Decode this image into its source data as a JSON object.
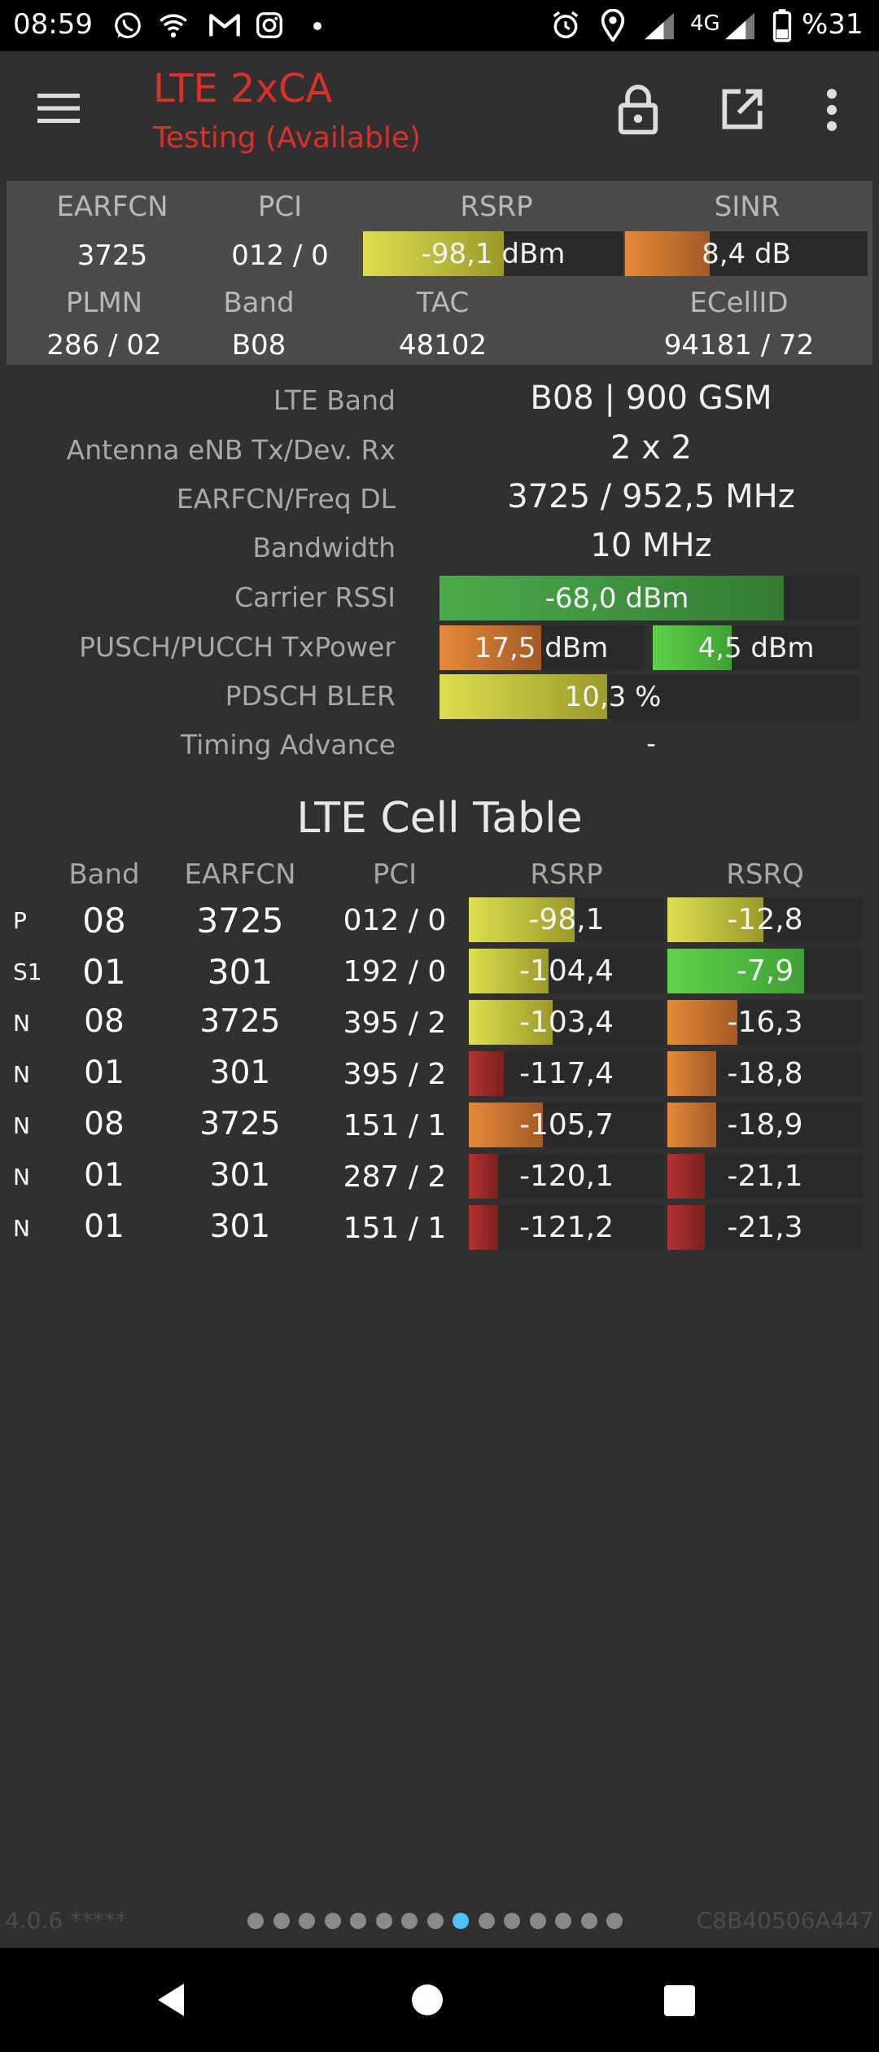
{
  "status_bar": {
    "time": "08:59",
    "left_icons": [
      "whatsapp-icon",
      "wifi-icon",
      "gmail-icon",
      "instagram-icon",
      "dot-icon"
    ],
    "right_icons": [
      "alarm-icon",
      "location-icon",
      "signal-icon",
      "network-4g-icon",
      "signal-icon",
      "battery-icon"
    ],
    "network_type": "4G",
    "battery": "%31"
  },
  "app_bar": {
    "title": "LTE 2xCA",
    "subtitle": "Testing (Available)",
    "title_color": "#d9302a",
    "actions": [
      "lock-icon",
      "open-external-icon",
      "more-vert-icon"
    ]
  },
  "summary": {
    "labels": {
      "earfcn": "EARFCN",
      "pci": "PCI",
      "rsrp": "RSRP",
      "sinr": "SINR",
      "plmn": "PLMN",
      "band": "Band",
      "tac": "TAC",
      "ecellid": "ECellID"
    },
    "earfcn": "3725",
    "pci": "012 / 0",
    "rsrp": {
      "text": "-98,1 dBm",
      "level": 0.54,
      "color": "yellow"
    },
    "sinr": {
      "text": "8,4 dB",
      "level": 0.35,
      "color": "orange"
    },
    "plmn": "286 / 02",
    "band": "B08",
    "tac": "48102",
    "ecellid": "94181 / 72"
  },
  "details": {
    "lte_band_label": "LTE Band",
    "lte_band": "B08 | 900 GSM",
    "antenna_label": "Antenna eNB Tx/Dev. Rx",
    "antenna": "2 x 2",
    "earfcn_freq_label": "EARFCN/Freq DL",
    "earfcn_freq": "3725 / 952,5 MHz",
    "bandwidth_label": "Bandwidth",
    "bandwidth": "10 MHz",
    "carrier_rssi_label": "Carrier RSSI",
    "carrier_rssi": {
      "text": "-68,0 dBm",
      "level": 0.82,
      "color": "green2"
    },
    "txpower_label": "PUSCH/PUCCH TxPower",
    "pusch": {
      "text": "17,5 dBm",
      "level": 0.5,
      "color": "orange"
    },
    "pucch": {
      "text": "4,5 dBm",
      "level": 0.38,
      "color": "green"
    },
    "bler_label": "PDSCH BLER",
    "bler": {
      "text": "10,3 %",
      "level": 0.4,
      "color": "yellow"
    },
    "timing_advance_label": "Timing Advance",
    "timing_advance": "-"
  },
  "cell_table": {
    "title": "LTE Cell Table",
    "headers": {
      "band": "Band",
      "earfcn": "EARFCN",
      "pci": "PCI",
      "rsrp": "RSRP",
      "rsrq": "RSRQ"
    },
    "rows": [
      {
        "type": "P",
        "band": "08",
        "earfcn": "3725",
        "pci": "012 / 0",
        "rsrp": "-98,1",
        "rsrp_level": 0.54,
        "rsrp_color": "yellow",
        "rsrq": "-12,8",
        "rsrq_level": 0.49,
        "rsrq_color": "yellow"
      },
      {
        "type": "S1",
        "band": "01",
        "earfcn": "301",
        "pci": "192 / 0",
        "rsrp": "-104,4",
        "rsrp_level": 0.41,
        "rsrp_color": "yellow",
        "rsrq": "-7,9",
        "rsrq_level": 0.7,
        "rsrq_color": "green"
      },
      {
        "type": "N",
        "band": "08",
        "earfcn": "3725",
        "pci": "395 / 2",
        "rsrp": "-103,4",
        "rsrp_level": 0.43,
        "rsrp_color": "yellow",
        "rsrq": "-16,3",
        "rsrq_level": 0.36,
        "rsrq_color": "orange"
      },
      {
        "type": "N",
        "band": "01",
        "earfcn": "301",
        "pci": "395 / 2",
        "rsrp": "-117,4",
        "rsrp_level": 0.18,
        "rsrp_color": "red",
        "rsrq": "-18,8",
        "rsrq_level": 0.25,
        "rsrq_color": "orange"
      },
      {
        "type": "N",
        "band": "08",
        "earfcn": "3725",
        "pci": "151 / 1",
        "rsrp": "-105,7",
        "rsrp_level": 0.38,
        "rsrp_color": "orange",
        "rsrq": "-18,9",
        "rsrq_level": 0.25,
        "rsrq_color": "orange"
      },
      {
        "type": "N",
        "band": "01",
        "earfcn": "301",
        "pci": "287 / 2",
        "rsrp": "-120,1",
        "rsrp_level": 0.15,
        "rsrp_color": "red",
        "rsrq": "-21,1",
        "rsrq_level": 0.19,
        "rsrq_color": "red"
      },
      {
        "type": "N",
        "band": "01",
        "earfcn": "301",
        "pci": "151 / 1",
        "rsrp": "-121,2",
        "rsrp_level": 0.15,
        "rsrp_color": "red",
        "rsrq": "-21,3",
        "rsrq_level": 0.19,
        "rsrq_color": "red"
      }
    ]
  },
  "footer": {
    "version": "4.0.6 *****",
    "device_id": "C8B40506A447",
    "page_count": 15,
    "active_page": 8
  },
  "nav_bar": {
    "buttons": [
      "back-icon",
      "home-icon",
      "recents-icon"
    ]
  }
}
